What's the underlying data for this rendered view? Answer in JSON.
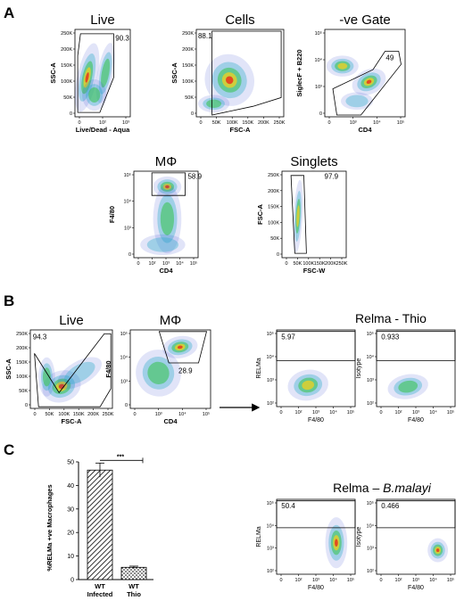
{
  "panels": {
    "A": {
      "label": "A",
      "plots": [
        {
          "title": "Live",
          "xlabel": "Live/Dead - Aqua",
          "ylabel": "SSC-A",
          "gate_value": "90.3",
          "yticks": [
            "250K",
            "200K",
            "150K",
            "100K",
            "50K",
            "0"
          ],
          "xticks": [
            "0",
            "10²",
            "10³"
          ]
        },
        {
          "title": "Cells",
          "xlabel": "FSC-A",
          "ylabel": "SSC-A",
          "gate_value": "88.1",
          "yticks": [
            "250K",
            "200K",
            "150K",
            "100K",
            "50K",
            "0"
          ],
          "xticks": [
            "0",
            "50K",
            "100K",
            "150K",
            "200K",
            "250K"
          ]
        },
        {
          "title": "-ve Gate",
          "xlabel": "CD4",
          "ylabel": "SiglecF + B220",
          "gate_value": "49",
          "yticks": [
            "10⁵",
            "10⁴",
            "10³",
            "0"
          ],
          "xticks": [
            "0",
            "10³",
            "10⁴",
            "10⁵"
          ]
        },
        {
          "title": "MΦ",
          "xlabel": "CD4",
          "ylabel": "F4/80",
          "gate_value": "58.9",
          "yticks": [
            "10⁵",
            "10⁴",
            "10³",
            "0"
          ],
          "xticks": [
            "0",
            "10²",
            "10³",
            "10⁴",
            "10⁵"
          ]
        },
        {
          "title": "Singlets",
          "xlabel": "FSC-W",
          "ylabel": "FSC-A",
          "gate_value": "97.9",
          "yticks": [
            "250K",
            "200K",
            "150K",
            "100K",
            "50K",
            "0"
          ],
          "xticks": [
            "0",
            "50K",
            "100K",
            "150K",
            "200K",
            "250K"
          ]
        }
      ]
    },
    "B": {
      "label": "B",
      "plots": [
        {
          "title": "Live",
          "xlabel": "FSC-A",
          "ylabel": "SSC-A",
          "gate_value": "94.3",
          "yticks": [
            "250K",
            "200K",
            "150K",
            "100K",
            "50K",
            "0"
          ],
          "xticks": [
            "0",
            "50K",
            "100K",
            "150K",
            "200K",
            "250K"
          ]
        },
        {
          "title": "MΦ",
          "xlabel": "CD4",
          "ylabel": "F4/80",
          "gate_value": "28.9",
          "yticks": [
            "10⁵",
            "10⁴",
            "10³",
            "0"
          ],
          "xticks": [
            "0",
            "10³",
            "10⁴",
            "10⁵"
          ]
        }
      ],
      "group_title": "Relma - Thio",
      "subplots": [
        {
          "xlabel": "F4/80",
          "ylabel": "RELMa",
          "gate_value": "5.97",
          "yticks": [
            "10⁵",
            "10⁴",
            "10³",
            "10²"
          ],
          "xticks": [
            "0",
            "10²",
            "10³",
            "10⁴",
            "10⁵"
          ]
        },
        {
          "xlabel": "F4/80",
          "ylabel": "Isotype",
          "gate_value": "0.933",
          "yticks": [
            "10⁵",
            "10⁴",
            "10³",
            "10²"
          ],
          "xticks": [
            "0",
            "10²",
            "10³",
            "10⁴",
            "10⁵"
          ]
        }
      ]
    },
    "C": {
      "label": "C",
      "group_title_prefix": "Relma – ",
      "group_title_italic": "B.malayi",
      "subplots": [
        {
          "xlabel": "F4/80",
          "ylabel": "RELMa",
          "gate_value": "50.4",
          "yticks": [
            "10⁵",
            "10⁴",
            "10³",
            "10²"
          ],
          "xticks": [
            "0",
            "10²",
            "10³",
            "10⁴",
            "10⁵"
          ]
        },
        {
          "xlabel": "F4/80",
          "ylabel": "Isotype",
          "gate_value": "0.466",
          "yticks": [
            "10⁵",
            "10⁴",
            "10³",
            "10²"
          ],
          "xticks": [
            "0",
            "10²",
            "10³",
            "10⁴",
            "10⁵"
          ]
        }
      ]
    }
  },
  "chart_data": {
    "type": "bar",
    "categories": [
      "WT Infected",
      "WT Thio"
    ],
    "category_lines": [
      [
        "WT",
        "Infected"
      ],
      [
        "WT",
        "Thio"
      ]
    ],
    "values": [
      46.5,
      5.2
    ],
    "errors": [
      3.0,
      0.5
    ],
    "ylabel": "%RELMa +ve Macrophages",
    "ylim": [
      0,
      50
    ],
    "yticks": [
      0,
      10,
      20,
      30,
      40,
      50
    ],
    "significance": "***",
    "grid": false
  }
}
